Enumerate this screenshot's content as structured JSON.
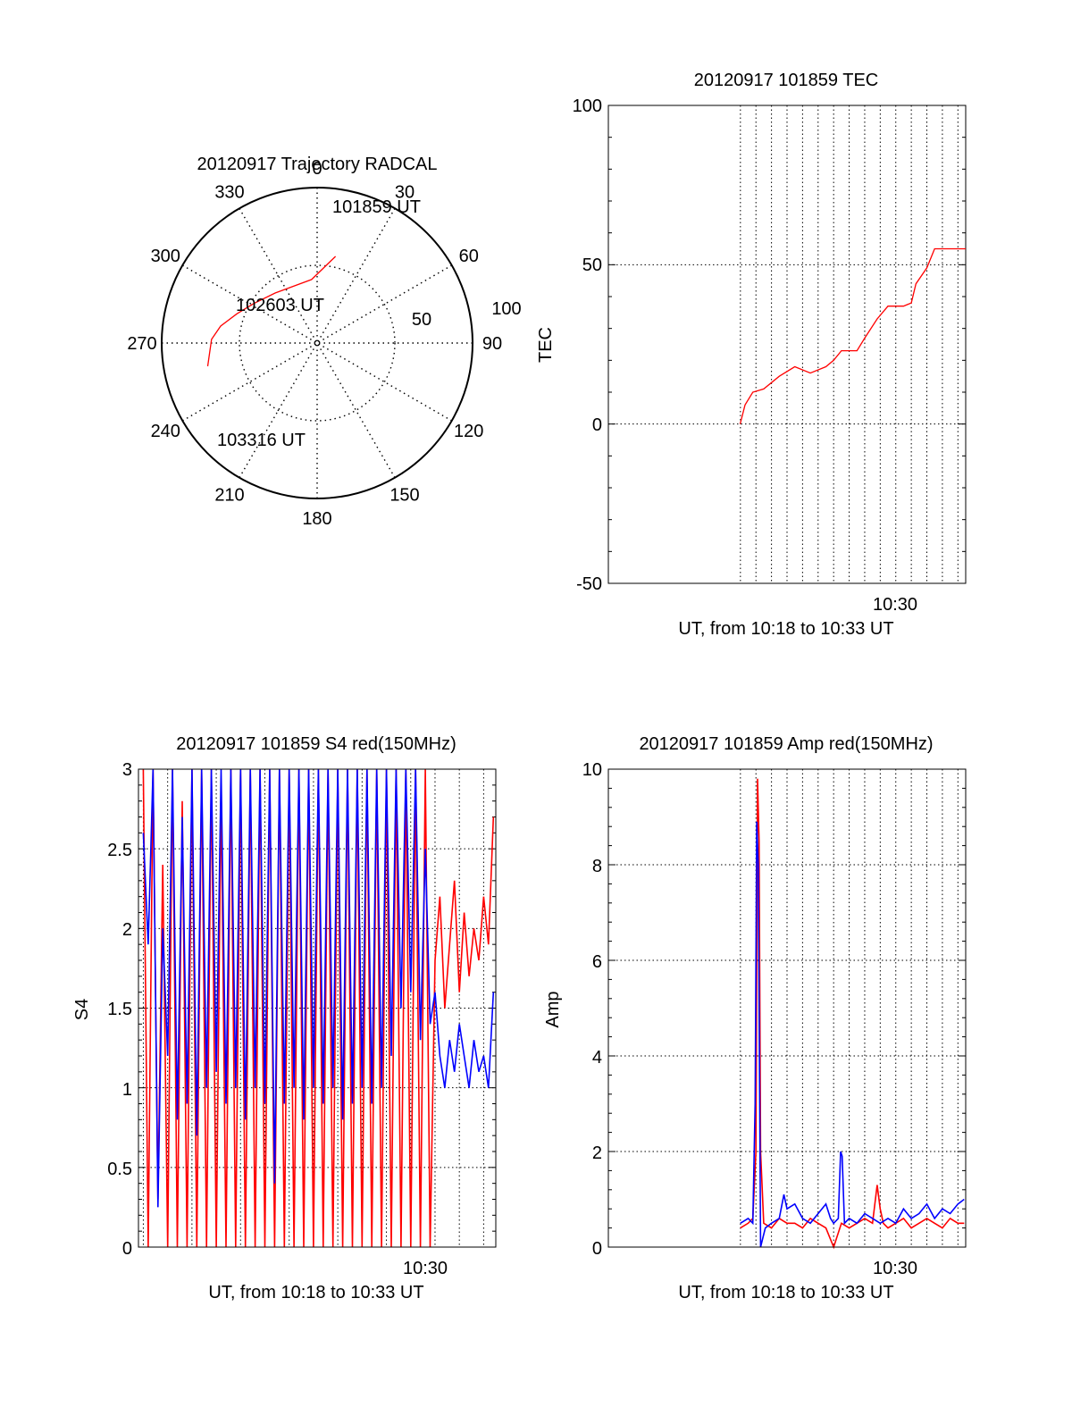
{
  "figure": {
    "date": "20120917",
    "colors": {
      "red": "#ff0000",
      "blue": "#0000ff",
      "axis": "#000000"
    }
  },
  "chart_data": [
    {
      "id": "polar",
      "type": "polar",
      "title": "20120917 Trajectory RADCAL",
      "angle_labels": [
        "0",
        "30",
        "60",
        "90",
        "120",
        "150",
        "180",
        "210",
        "240",
        "270",
        "300",
        "330"
      ],
      "radius_labels": [
        "50",
        "100"
      ],
      "rlim": [
        0,
        100
      ],
      "trajectory": {
        "color": "#ff0000",
        "points": [
          {
            "az": 12,
            "zen": 57
          },
          {
            "az": 355,
            "zen": 41
          },
          {
            "az": 320,
            "zen": 42
          },
          {
            "az": 302,
            "zen": 48
          },
          {
            "az": 290,
            "zen": 55
          },
          {
            "az": 280,
            "zen": 63
          },
          {
            "az": 272,
            "zen": 68
          },
          {
            "az": 258,
            "zen": 72
          }
        ]
      },
      "annotations": [
        {
          "text": "101859 UT",
          "point": "start"
        },
        {
          "text": "102603 UT",
          "point": "middle"
        },
        {
          "text": "103316 UT",
          "point": "end"
        }
      ]
    },
    {
      "id": "tec",
      "type": "line",
      "title": "20120917 101859 TEC",
      "ylabel": "TEC",
      "xlabel": "UT, from 10:18 to 10:33 UT",
      "ylim": [
        -50,
        100
      ],
      "yticks": [
        "-50",
        "0",
        "50",
        "100"
      ],
      "xlim_minutes": [
        10.5,
        33.5
      ],
      "xtick_label": "10:30",
      "grid": true,
      "series": [
        {
          "color": "#ff0000",
          "x": [
            18.98,
            19.3,
            19.8,
            20.5,
            21.5,
            22.5,
            23.5,
            24.5,
            25.0,
            25.5,
            26.5,
            27.0,
            27.8,
            28.5,
            29.5,
            30.0,
            30.3,
            31.0,
            31.5,
            33.5
          ],
          "y": [
            0,
            6,
            10,
            11,
            15,
            18,
            16,
            18,
            20,
            23,
            23,
            27,
            33,
            37,
            37,
            38,
            44,
            49,
            55,
            55
          ]
        }
      ]
    },
    {
      "id": "s4",
      "type": "line",
      "title": "20120917 101859 S4 red(150MHz)",
      "ylabel": "S4",
      "xlabel": "UT, from 10:18 to 10:33 UT",
      "ylim": [
        0,
        3
      ],
      "yticks": [
        "0",
        "0.5",
        "1",
        "1.5",
        "2",
        "2.5",
        "3"
      ],
      "xlim_minutes": [
        18.8,
        33.5
      ],
      "xtick_label": "10:30",
      "grid": true,
      "series": [
        {
          "color": "#ff0000",
          "x": [
            19.0,
            19.2,
            19.4,
            19.6,
            19.8,
            20.0,
            20.2,
            20.4,
            20.6,
            20.8,
            21.0,
            21.2,
            21.4,
            21.6,
            21.8,
            22.0,
            22.2,
            22.4,
            22.6,
            22.8,
            23.0,
            23.2,
            23.4,
            23.6,
            23.8,
            24.0,
            24.2,
            24.4,
            24.6,
            24.8,
            25.0,
            25.2,
            25.4,
            25.6,
            25.8,
            26.0,
            26.2,
            26.4,
            26.6,
            26.8,
            27.0,
            27.2,
            27.4,
            27.6,
            27.8,
            28.0,
            28.2,
            28.4,
            28.6,
            28.8,
            29.0,
            29.2,
            29.4,
            29.6,
            29.8,
            30.0,
            30.2,
            30.4,
            30.6,
            30.8,
            31.0,
            31.2,
            31.4,
            31.6,
            31.8,
            32.0,
            32.2,
            32.4,
            32.6,
            32.8,
            33.0,
            33.2,
            33.4
          ],
          "y": [
            3.0,
            0.0,
            3.0,
            0.3,
            2.4,
            0.0,
            3.0,
            0.0,
            2.8,
            0.0,
            3.0,
            0.0,
            3.0,
            0.0,
            3.0,
            0.0,
            2.9,
            0.0,
            3.0,
            0.0,
            3.0,
            0.0,
            3.0,
            0.0,
            3.0,
            0.0,
            3.0,
            0.0,
            3.0,
            0.0,
            3.0,
            0.0,
            3.0,
            0.0,
            3.0,
            0.0,
            3.0,
            0.0,
            3.0,
            0.0,
            3.0,
            0.0,
            3.0,
            0.0,
            3.0,
            0.0,
            3.0,
            0.0,
            3.0,
            0.0,
            3.0,
            0.0,
            3.0,
            0.0,
            3.0,
            0.0,
            3.0,
            0.0,
            3.0,
            0.0,
            1.8,
            2.2,
            1.5,
            1.9,
            2.3,
            1.6,
            2.1,
            1.7,
            2.0,
            1.8,
            2.2,
            1.9,
            2.7
          ]
        },
        {
          "color": "#0000ff",
          "x": [
            19.0,
            19.2,
            19.4,
            19.6,
            19.8,
            20.0,
            20.2,
            20.4,
            20.6,
            20.8,
            21.0,
            21.2,
            21.4,
            21.6,
            21.8,
            22.0,
            22.2,
            22.4,
            22.6,
            22.8,
            23.0,
            23.2,
            23.4,
            23.6,
            23.8,
            24.0,
            24.2,
            24.4,
            24.6,
            24.8,
            25.0,
            25.2,
            25.4,
            25.6,
            25.8,
            26.0,
            26.2,
            26.4,
            26.6,
            26.8,
            27.0,
            27.2,
            27.4,
            27.6,
            27.8,
            28.0,
            28.2,
            28.4,
            28.6,
            28.8,
            29.0,
            29.2,
            29.4,
            29.6,
            29.8,
            30.0,
            30.2,
            30.4,
            30.6,
            30.8,
            31.0,
            31.2,
            31.4,
            31.6,
            31.8,
            32.0,
            32.2,
            32.4,
            32.6,
            32.8,
            33.0,
            33.2,
            33.4
          ],
          "y": [
            2.6,
            1.9,
            3.0,
            0.25,
            2.0,
            1.2,
            3.0,
            0.8,
            2.7,
            0.9,
            3.0,
            0.7,
            3.0,
            1.0,
            3.0,
            1.1,
            3.0,
            0.9,
            3.0,
            1.0,
            3.0,
            0.8,
            3.0,
            1.0,
            3.0,
            0.9,
            3.0,
            0.4,
            3.0,
            0.9,
            3.0,
            1.0,
            3.0,
            0.8,
            3.0,
            1.0,
            3.0,
            0.9,
            3.0,
            1.0,
            3.0,
            0.8,
            3.0,
            0.9,
            3.0,
            1.0,
            3.0,
            0.9,
            3.0,
            1.0,
            3.0,
            1.2,
            3.0,
            1.5,
            3.0,
            1.6,
            3.0,
            1.3,
            2.5,
            1.4,
            1.6,
            1.2,
            1.0,
            1.3,
            1.1,
            1.4,
            1.2,
            1.0,
            1.3,
            1.1,
            1.2,
            1.0,
            1.6
          ]
        }
      ]
    },
    {
      "id": "amp",
      "type": "line",
      "title": "20120917 101859 Amp red(150MHz)",
      "ylabel": "Amp",
      "xlabel": "UT, from 10:18 to 10:33 UT",
      "ylim": [
        0,
        10
      ],
      "yticks": [
        "0",
        "2",
        "4",
        "6",
        "8",
        "10"
      ],
      "xlim_minutes": [
        10.5,
        33.5
      ],
      "xtick_label": "10:30",
      "grid": true,
      "series": [
        {
          "color": "#ff0000",
          "x": [
            19.0,
            19.5,
            19.8,
            20.0,
            20.1,
            20.2,
            20.3,
            20.5,
            21.0,
            21.5,
            22.0,
            22.5,
            23.0,
            23.5,
            24.0,
            24.5,
            25.0,
            25.5,
            26.0,
            26.5,
            27.0,
            27.5,
            27.8,
            28.0,
            28.2,
            28.5,
            29.0,
            29.5,
            30.0,
            30.5,
            31.0,
            31.5,
            32.0,
            32.5,
            33.0,
            33.4
          ],
          "y": [
            0.4,
            0.5,
            0.6,
            2.0,
            9.8,
            8.5,
            2.0,
            0.5,
            0.4,
            0.6,
            0.5,
            0.5,
            0.4,
            0.6,
            0.5,
            0.4,
            0.0,
            0.5,
            0.4,
            0.5,
            0.6,
            0.5,
            1.3,
            0.8,
            0.5,
            0.4,
            0.5,
            0.6,
            0.4,
            0.5,
            0.6,
            0.5,
            0.4,
            0.6,
            0.5,
            0.5
          ]
        },
        {
          "color": "#0000ff",
          "x": [
            19.0,
            19.5,
            19.8,
            19.95,
            20.05,
            20.15,
            20.3,
            20.6,
            21.0,
            21.5,
            21.8,
            22.0,
            22.5,
            23.0,
            23.5,
            24.0,
            24.5,
            24.8,
            25.0,
            25.3,
            25.45,
            25.55,
            25.7,
            26.0,
            26.5,
            27.0,
            27.5,
            28.0,
            28.5,
            29.0,
            29.5,
            30.0,
            30.5,
            31.0,
            31.5,
            32.0,
            32.5,
            33.0,
            33.4
          ],
          "y": [
            0.5,
            0.6,
            0.5,
            3.0,
            8.9,
            8.0,
            0.0,
            0.4,
            0.5,
            0.6,
            1.1,
            0.8,
            0.9,
            0.6,
            0.5,
            0.7,
            0.9,
            0.6,
            0.5,
            0.6,
            2.0,
            1.9,
            0.5,
            0.6,
            0.5,
            0.7,
            0.6,
            0.5,
            0.6,
            0.5,
            0.8,
            0.6,
            0.7,
            0.9,
            0.6,
            0.8,
            0.7,
            0.9,
            1.0
          ]
        }
      ]
    }
  ]
}
